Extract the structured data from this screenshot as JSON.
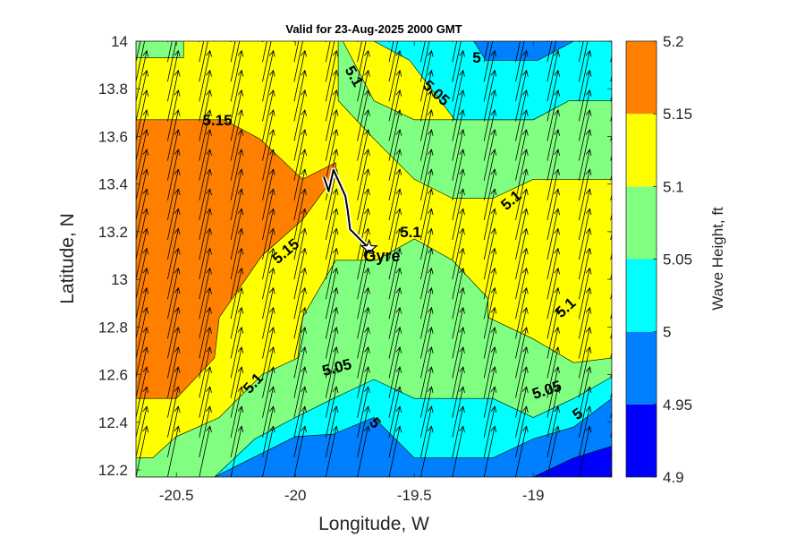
{
  "chart_data": {
    "type": "contourf",
    "title": "Valid for 23-Aug-2025 2000 GMT",
    "xlabel": "Longitude, W",
    "ylabel": "Latitude, N",
    "xlim": [
      -20.67,
      -18.67
    ],
    "ylim": [
      12.17,
      14.0
    ],
    "x_ticks": [
      "-20.5",
      "-20",
      "-19.5",
      "-19"
    ],
    "x_tick_values": [
      -20.5,
      -20.0,
      -19.5,
      -19.0
    ],
    "y_ticks": [
      "12.2",
      "12.4",
      "12.6",
      "12.8",
      "13",
      "13.2",
      "13.4",
      "13.6",
      "13.8",
      "14"
    ],
    "y_tick_values": [
      12.2,
      12.4,
      12.6,
      12.8,
      13.0,
      13.2,
      13.4,
      13.6,
      13.8,
      14.0
    ],
    "colorbar": {
      "label": "Wave Height, ft",
      "levels": [
        4.9,
        4.95,
        5.0,
        5.05,
        5.1,
        5.15,
        5.2
      ],
      "tick_labels": [
        "4.9",
        "4.95",
        "5",
        "5.05",
        "5.1",
        "5.15",
        "5.2"
      ],
      "colors": [
        "#0000ff",
        "#0080ff",
        "#00ffff",
        "#80ff80",
        "#ffff00",
        "#ff8000"
      ]
    },
    "regions": [
      {
        "level": "5.05-5.1",
        "color": "#80ff80",
        "points": [
          [
            -20.67,
            14.0
          ],
          [
            -20.47,
            14.0
          ],
          [
            -20.47,
            13.93
          ],
          [
            -20.67,
            13.93
          ]
        ]
      },
      {
        "level": "5.15-5.2",
        "color": "#ff8000",
        "points": [
          [
            -20.67,
            13.67
          ],
          [
            -20.3,
            13.67
          ],
          [
            -20.15,
            13.59
          ],
          [
            -19.97,
            13.42
          ],
          [
            -19.83,
            13.49
          ],
          [
            -19.83,
            13.44
          ],
          [
            -19.97,
            13.25
          ],
          [
            -20.14,
            13.1
          ],
          [
            -20.32,
            12.84
          ],
          [
            -20.34,
            12.67
          ],
          [
            -20.5,
            12.5
          ],
          [
            -20.67,
            12.5
          ]
        ]
      },
      {
        "level": "5.05-5.1",
        "color": "#80ff80",
        "points": [
          [
            -20.67,
            12.25
          ],
          [
            -20.6,
            12.25
          ],
          [
            -20.5,
            12.34
          ],
          [
            -20.32,
            12.42
          ],
          [
            -20.14,
            12.6
          ],
          [
            -19.99,
            12.67
          ],
          [
            -19.97,
            12.84
          ],
          [
            -19.83,
            13.08
          ],
          [
            -19.66,
            13.08
          ],
          [
            -19.5,
            13.17
          ],
          [
            -19.34,
            13.08
          ],
          [
            -19.19,
            12.92
          ],
          [
            -19.19,
            12.84
          ],
          [
            -19.0,
            12.75
          ],
          [
            -18.83,
            12.65
          ],
          [
            -18.67,
            12.67
          ],
          [
            -18.67,
            12.17
          ],
          [
            -20.67,
            12.17
          ]
        ]
      },
      {
        "level": "5.05-5.1",
        "color": "#80ff80",
        "points": [
          [
            -19.82,
            14.0
          ],
          [
            -19.82,
            13.75
          ],
          [
            -19.67,
            13.59
          ],
          [
            -19.5,
            13.42
          ],
          [
            -19.34,
            13.34
          ],
          [
            -19.17,
            13.34
          ],
          [
            -19.0,
            13.42
          ],
          [
            -18.67,
            13.42
          ],
          [
            -18.67,
            13.75
          ],
          [
            -18.85,
            13.75
          ],
          [
            -19.0,
            13.67
          ],
          [
            -19.5,
            13.67
          ],
          [
            -19.67,
            13.75
          ],
          [
            -19.8,
            14.0
          ]
        ]
      },
      {
        "level": "5.0-5.05",
        "color": "#00ffff",
        "points": [
          [
            -19.67,
            14.0
          ],
          [
            -19.52,
            13.92
          ],
          [
            -19.33,
            13.67
          ],
          [
            -19.0,
            13.67
          ],
          [
            -18.85,
            13.75
          ],
          [
            -18.67,
            13.75
          ],
          [
            -18.67,
            14.0
          ]
        ]
      },
      {
        "level": "4.95-5.0",
        "color": "#0080ff",
        "points": [
          [
            -19.25,
            14.0
          ],
          [
            -19.2,
            13.92
          ],
          [
            -18.98,
            13.92
          ],
          [
            -18.83,
            14.0
          ]
        ]
      },
      {
        "level": "5.0-5.05",
        "color": "#00ffff",
        "points": [
          [
            -20.67,
            12.17
          ],
          [
            -20.34,
            12.17
          ],
          [
            -20.17,
            12.33
          ],
          [
            -20.0,
            12.42
          ],
          [
            -19.84,
            12.5
          ],
          [
            -19.67,
            12.58
          ],
          [
            -19.5,
            12.5
          ],
          [
            -19.17,
            12.5
          ],
          [
            -19.0,
            12.42
          ],
          [
            -18.83,
            12.5
          ],
          [
            -18.67,
            12.59
          ],
          [
            -18.67,
            12.17
          ]
        ]
      },
      {
        "level": "4.95-5.0",
        "color": "#0080ff",
        "points": [
          [
            -20.34,
            12.17
          ],
          [
            -20.18,
            12.25
          ],
          [
            -20.0,
            12.34
          ],
          [
            -19.84,
            12.35
          ],
          [
            -19.67,
            12.42
          ],
          [
            -19.5,
            12.25
          ],
          [
            -19.17,
            12.25
          ],
          [
            -19.0,
            12.33
          ],
          [
            -18.83,
            12.38
          ],
          [
            -18.67,
            12.5
          ],
          [
            -18.67,
            12.17
          ]
        ]
      },
      {
        "level": "4.9-4.95",
        "color": "#0000ff",
        "points": [
          [
            -19.0,
            12.17
          ],
          [
            -18.83,
            12.25
          ],
          [
            -18.67,
            12.3
          ],
          [
            -18.67,
            12.17
          ]
        ]
      }
    ],
    "contour_labels": [
      "5.15",
      "5.1",
      "5.05",
      "5",
      "5.15",
      "5.1",
      "5.1",
      "5.1",
      "5.05",
      "5.05",
      "5.1",
      "5",
      "5"
    ],
    "vector_field": {
      "name": "wind direction",
      "direction_deg_from_north": 12,
      "dx": 0.133,
      "dy": 0.083
    },
    "track": {
      "name": "Gyre",
      "points": [
        [
          -19.88,
          13.43
        ],
        [
          -19.86,
          13.37
        ],
        [
          -19.84,
          13.46
        ],
        [
          -19.79,
          13.35
        ],
        [
          -19.78,
          13.29
        ],
        [
          -19.77,
          13.21
        ],
        [
          -19.73,
          13.17
        ],
        [
          -19.69,
          13.13
        ]
      ],
      "marker": "star"
    }
  }
}
